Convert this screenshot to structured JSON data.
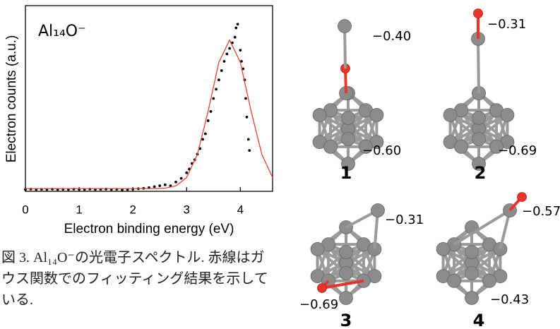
{
  "chart_data": {
    "type": "scatter",
    "title": "Al₁₄O⁻",
    "xlabel": "Electron binding energy (eV)",
    "ylabel": "Electron counts (a.u.)",
    "xlim": [
      0,
      4.6
    ],
    "ylim": [
      0,
      1
    ],
    "xticks": [
      0,
      1,
      2,
      3,
      4
    ],
    "series": [
      {
        "type": "scatter",
        "color": "#000000",
        "x": [
          0,
          0.1,
          0.2,
          0.3,
          0.4,
          0.5,
          0.6,
          0.7,
          0.8,
          0.9,
          1.0,
          1.1,
          1.2,
          1.3,
          1.4,
          1.5,
          1.6,
          1.7,
          1.8,
          1.9,
          2.0,
          2.1,
          2.2,
          2.3,
          2.4,
          2.5,
          2.6,
          2.7,
          2.8,
          2.9,
          3.0,
          3.05,
          3.1,
          3.15,
          3.2,
          3.25,
          3.3,
          3.35,
          3.4,
          3.45,
          3.5,
          3.55,
          3.6,
          3.65,
          3.7,
          3.75,
          3.8,
          3.85,
          3.9,
          3.92,
          3.95,
          4.0,
          4.02,
          4.05,
          4.08,
          4.1,
          4.12,
          4.15,
          4.17
        ],
        "values": [
          0.01,
          0.012,
          0.01,
          0.011,
          0.01,
          0.012,
          0.01,
          0.011,
          0.01,
          0.012,
          0.011,
          0.01,
          0.012,
          0.01,
          0.011,
          0.012,
          0.01,
          0.011,
          0.008,
          0.01,
          0.012,
          0.014,
          0.016,
          0.02,
          0.025,
          0.03,
          0.035,
          0.03,
          0.05,
          0.07,
          0.1,
          0.12,
          0.15,
          0.17,
          0.2,
          0.23,
          0.28,
          0.31,
          0.38,
          0.43,
          0.5,
          0.55,
          0.6,
          0.65,
          0.7,
          0.74,
          0.77,
          0.8,
          0.83,
          0.88,
          0.9,
          0.76,
          0.7,
          0.66,
          0.6,
          0.5,
          0.4,
          0.28,
          0.22
        ]
      },
      {
        "type": "line",
        "color": "#e8442a",
        "x": [
          0,
          1,
          2,
          2.4,
          2.6,
          2.8,
          3.0,
          3.2,
          3.4,
          3.6,
          3.8,
          4.0,
          4.2,
          4.4,
          4.6
        ],
        "values": [
          0.015,
          0.015,
          0.015,
          0.015,
          0.017,
          0.029,
          0.074,
          0.199,
          0.431,
          0.695,
          0.815,
          0.695,
          0.431,
          0.199,
          0.074
        ]
      }
    ]
  },
  "caption": "図 3. Al₁₄O⁻の光電子スペクトル. 赤線はガウス関数でのフィッティング結果を示している.",
  "structures": [
    {
      "label": "1",
      "charges": [
        "−0.40",
        "−0.60"
      ]
    },
    {
      "label": "2",
      "charges": [
        "−0.31",
        "−0.69"
      ]
    },
    {
      "label": "3",
      "charges": [
        "−0.31",
        "−0.69"
      ]
    },
    {
      "label": "4",
      "charges": [
        "−0.57",
        "−0.43"
      ]
    }
  ]
}
